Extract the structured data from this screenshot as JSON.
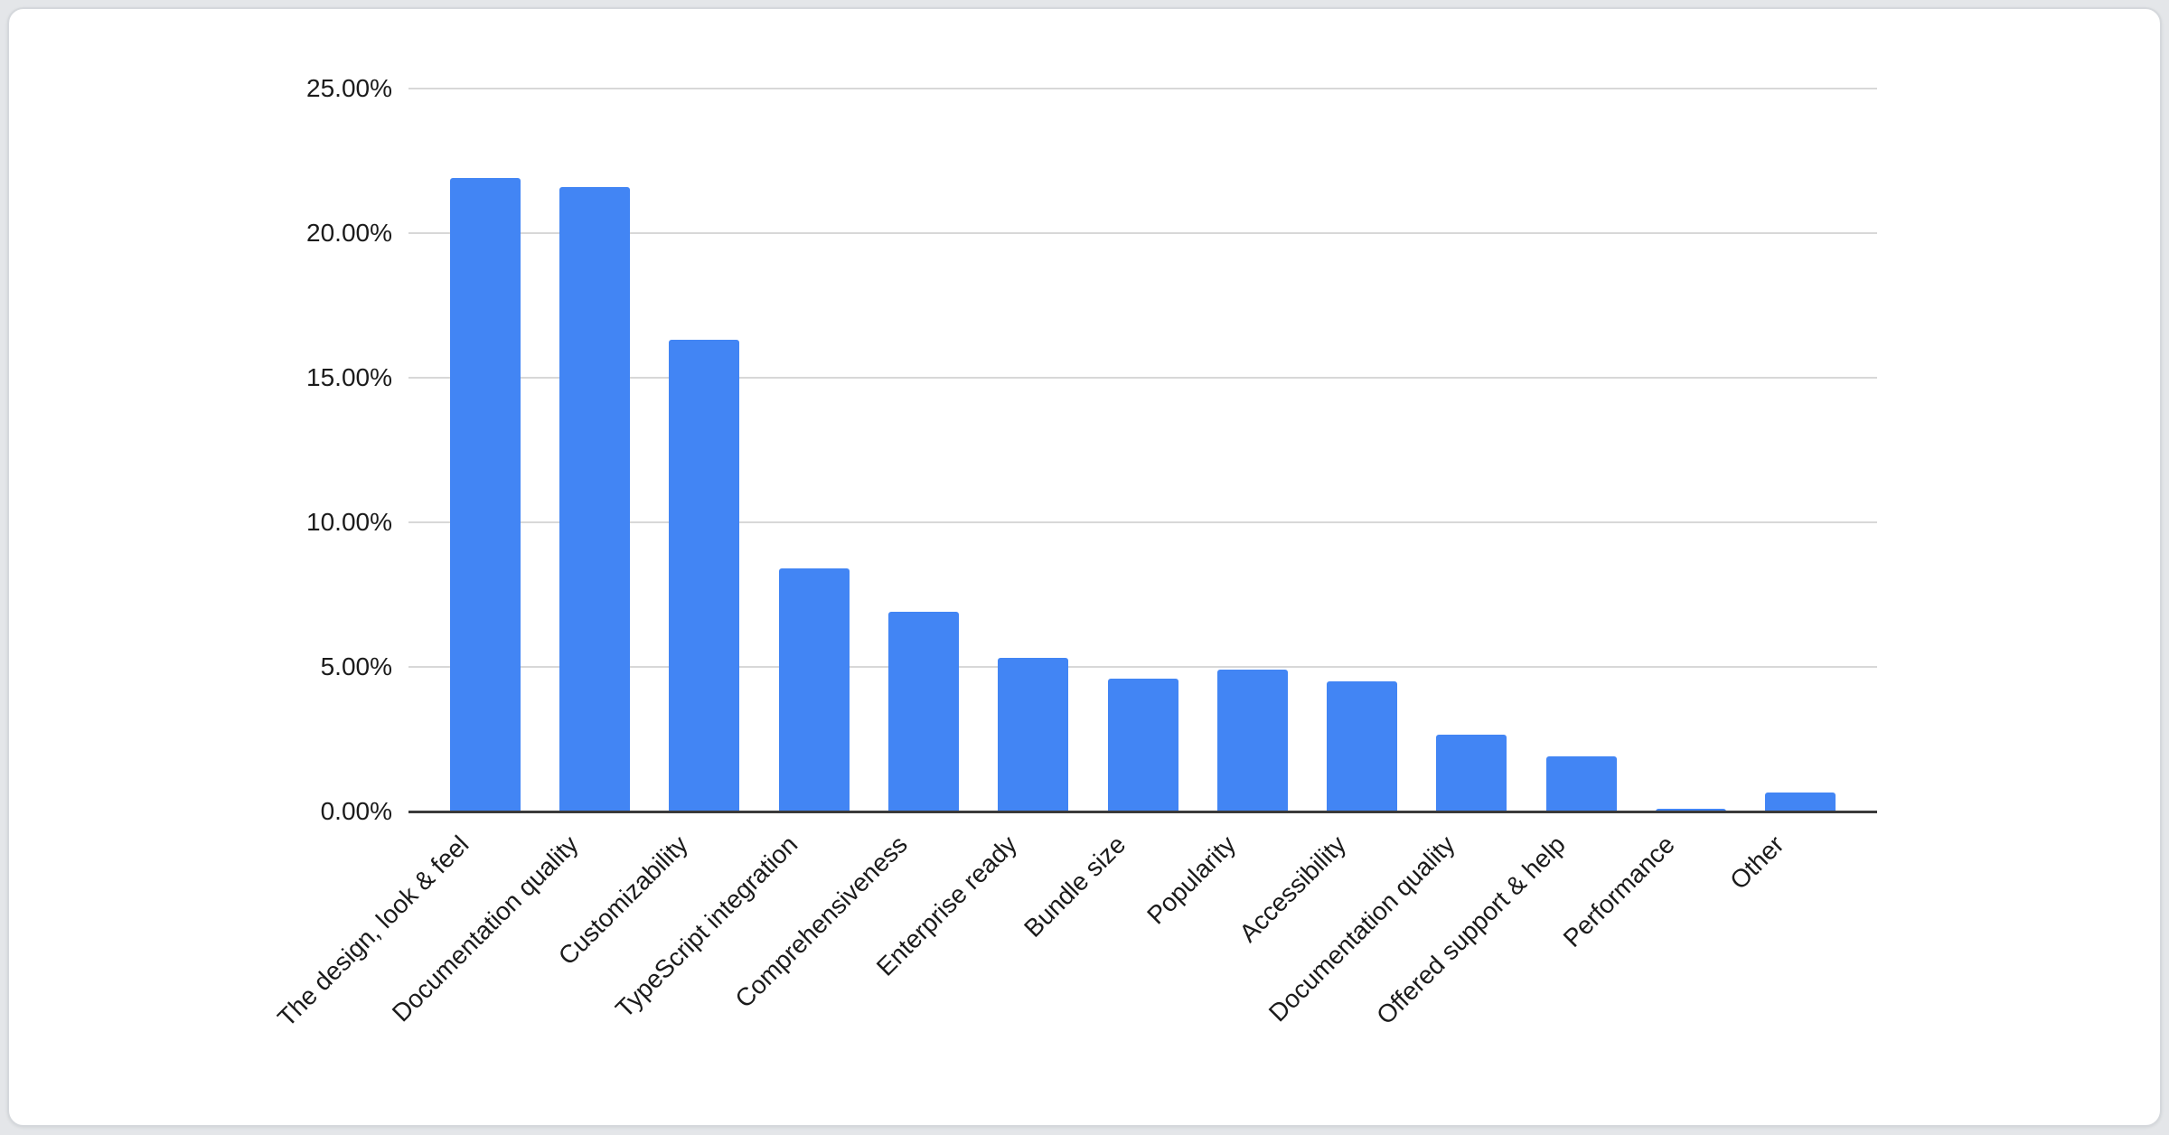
{
  "chart_data": {
    "type": "bar",
    "title": "",
    "xlabel": "",
    "ylabel": "",
    "categories": [
      "The design, look & feel",
      "Documentation quality",
      "Customizability",
      "TypeScript integration",
      "Comprehensiveness",
      "Enterprise ready",
      "Bundle size",
      "Popularity",
      "Accessibility",
      "Documentation quality",
      "Offered support & help",
      "Performance",
      "Other"
    ],
    "values": [
      21.9,
      21.6,
      16.3,
      8.4,
      6.9,
      5.3,
      4.6,
      4.9,
      4.5,
      2.65,
      1.9,
      0.1,
      0.65
    ],
    "unit": "%",
    "ylim": [
      0,
      25
    ],
    "yticks": [
      {
        "value": 25,
        "label": "25.00%"
      },
      {
        "value": 20,
        "label": "20.00%"
      },
      {
        "value": 15,
        "label": "15.00%"
      },
      {
        "value": 10,
        "label": "10.00%"
      },
      {
        "value": 5,
        "label": "5.00%"
      },
      {
        "value": 0,
        "label": "0.00%"
      }
    ],
    "grid": true,
    "legend": "none",
    "x_label_rotation_deg": 45,
    "colors": {
      "bar": "#4285f4",
      "gridline": "#d8d8d8",
      "axis_line": "#3a3a3a",
      "label_text": "#1b1b1b",
      "card_background": "#ffffff",
      "card_border": "#d5d8dc",
      "page_background": "#e4e6e9"
    }
  }
}
